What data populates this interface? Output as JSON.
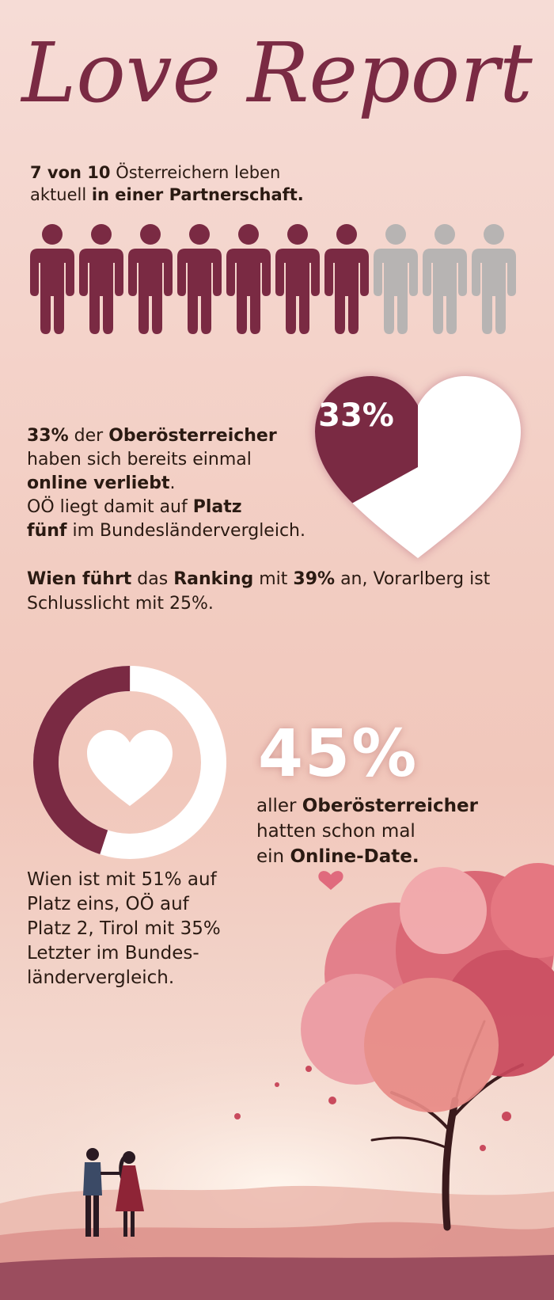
{
  "header": {
    "title": "Love Report"
  },
  "stat_partnership": {
    "count": "7 von 10",
    "text1": " Österreichern leben",
    "text2": "aktuell ",
    "text3": "in einer Partnerschaft.",
    "filled": 7,
    "total": 10
  },
  "stat_online_love": {
    "pct": "33%",
    "t1": " der ",
    "region": "Oberösterreicher",
    "t2": "haben sich bereits  einmal",
    "t3": "online verliebt",
    "t4": ".",
    "t5": "OÖ liegt damit auf ",
    "t6": "Platz",
    "t7": "fünf",
    "t8": " im Bundesländervergleich.",
    "heart_label": "33%",
    "fill_fraction": 0.33
  },
  "ranking": {
    "a": "Wien führt",
    "b": " das ",
    "c": "Ranking",
    "d": " mit ",
    "e": "39%",
    "f": " an, Vorarlberg ist",
    "g": "Schlusslicht mit 25%."
  },
  "stat_online_date": {
    "big": "45%",
    "t1": "aller ",
    "t2": "Oberösterreicher",
    "t3": "hatten schon mal",
    "t4": "ein ",
    "t5": "Online-Date.",
    "fill_fraction": 0.45
  },
  "comparison": {
    "l1": "Wien ist mit 51% auf",
    "l2": "Platz eins, OÖ auf",
    "l3": "Platz 2, Tirol mit 35%",
    "l4": "Letzter im Bundes-",
    "l5": "ländervergleich."
  },
  "colors": {
    "accent": "#7a2a43",
    "grey": "#b7b4b3",
    "white": "#ffffff"
  },
  "icons": {
    "person": "person-icon",
    "heart": "heart-icon"
  }
}
